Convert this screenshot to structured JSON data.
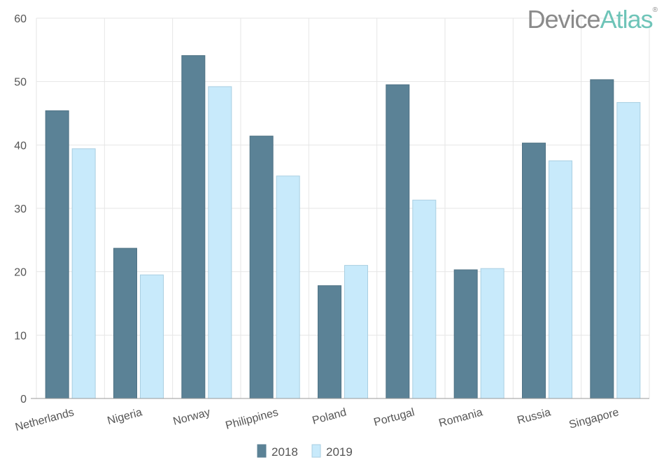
{
  "logo": {
    "part1": "Device",
    "part2": "Atlas",
    "mark": "®",
    "colors": {
      "part1": "#8a8a8a",
      "part2": "#6ec4b8"
    }
  },
  "chart_data": {
    "type": "bar",
    "categories": [
      "Netherlands",
      "Nigeria",
      "Norway",
      "Philippines",
      "Poland",
      "Portugal",
      "Romania",
      "Russia",
      "Singapore"
    ],
    "series": [
      {
        "name": "2018",
        "color": "#5b8296",
        "values": [
          45.4,
          23.7,
          54.1,
          41.4,
          17.8,
          49.5,
          20.3,
          40.3,
          50.3
        ]
      },
      {
        "name": "2019",
        "color": "#c8eafb",
        "values": [
          39.4,
          19.5,
          49.2,
          35.1,
          21.0,
          31.3,
          20.5,
          37.5,
          46.7
        ]
      }
    ],
    "ylim": [
      0,
      60
    ],
    "yticks": [
      0,
      10,
      20,
      30,
      40,
      50,
      60
    ],
    "grid": true,
    "legend_position": "bottom-center"
  }
}
